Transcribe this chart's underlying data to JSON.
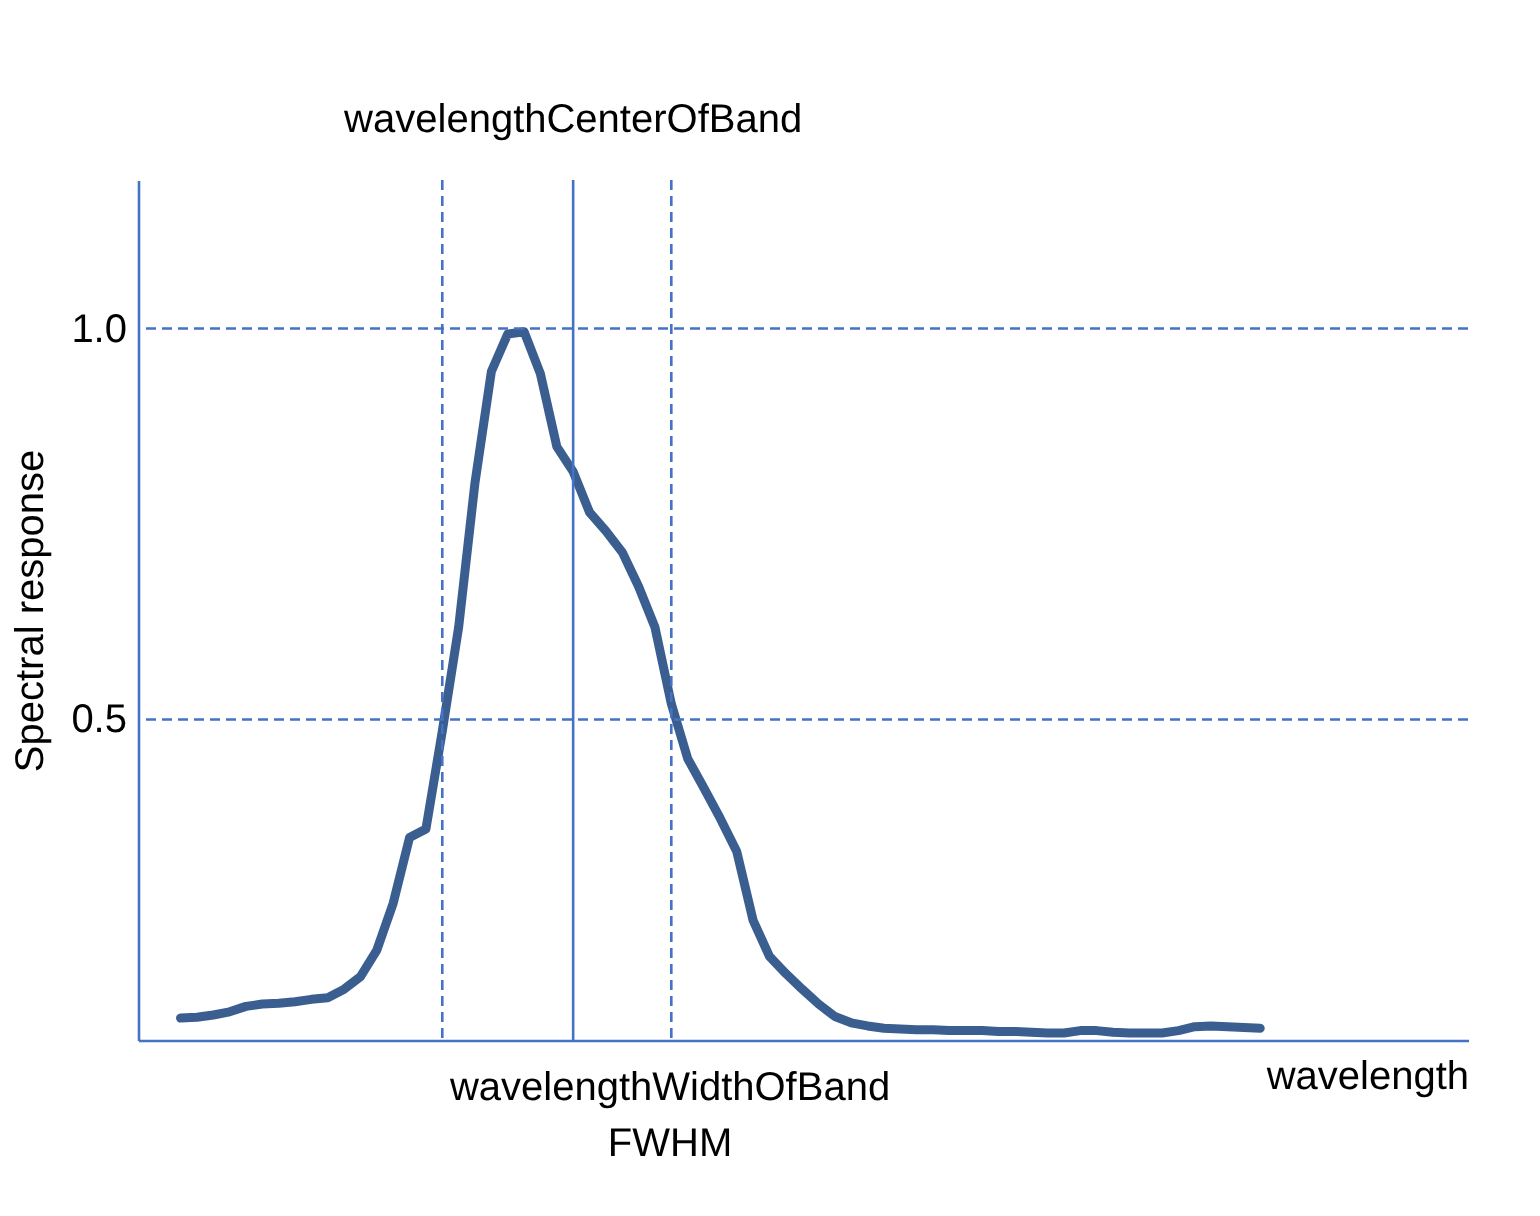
{
  "chart_data": {
    "type": "line",
    "xlabel": "wavelength",
    "ylabel": "Spectral response",
    "categories": [
      null,
      null,
      null,
      null,
      null,
      null,
      null,
      null,
      null,
      null,
      null,
      null,
      null,
      null,
      null,
      null,
      null,
      null,
      null,
      null,
      null,
      null,
      null,
      null,
      null,
      null,
      null,
      null,
      null,
      null,
      null,
      null,
      null,
      null,
      null,
      null,
      null,
      null,
      null,
      null,
      null,
      null,
      null,
      null,
      null,
      null,
      null,
      null,
      null,
      null,
      null,
      null,
      null,
      null,
      null,
      null,
      null,
      null,
      null,
      null,
      null,
      null,
      null,
      null,
      null,
      null,
      null
    ],
    "ylim": [
      0.09,
      1.19
    ],
    "yticks": [
      {
        "value": 1,
        "label": "1.0"
      },
      {
        "value": 0.5,
        "label": "0.5"
      }
    ],
    "tick_labels": "y",
    "series": [
      {
        "color": "#3b5e91",
        "values": [
          0.118,
          0.119,
          0.122,
          0.126,
          0.133,
          0.136,
          0.137,
          0.139,
          0.142,
          0.144,
          0.155,
          0.171,
          0.205,
          0.265,
          0.349,
          0.36,
          0.485,
          0.618,
          0.803,
          0.945,
          0.993,
          0.996,
          0.942,
          0.849,
          0.817,
          0.765,
          0.741,
          0.714,
          0.67,
          0.618,
          0.52,
          0.45,
          0.412,
          0.373,
          0.331,
          0.243,
          0.197,
          0.175,
          0.155,
          0.136,
          0.12,
          0.112,
          0.108,
          0.105,
          0.104,
          0.103,
          0.103,
          0.102,
          0.102,
          0.102,
          0.101,
          0.101,
          0.1,
          0.099,
          0.099,
          0.102,
          0.102,
          0.1,
          0.099,
          0.099,
          0.099,
          0.102,
          0.107,
          0.108,
          0.107,
          0.106,
          0.105
        ]
      }
    ],
    "ref_lines": [
      {
        "axis": "y",
        "value": 1,
        "color": "#4472c4",
        "line_style": "dashed"
      },
      {
        "axis": "y",
        "value": 0.5,
        "color": "#4472c4",
        "line_style": "dashed"
      }
    ],
    "annotations": [
      "wavelengthCenterOfBand",
      "wavelengthWidthOfBand",
      "FWHM"
    ]
  }
}
